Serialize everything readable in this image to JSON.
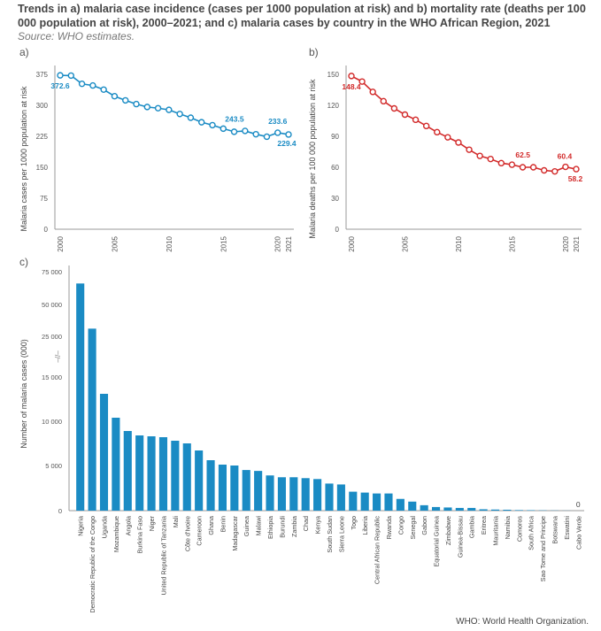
{
  "title": "Trends in a) malaria case incidence (cases per 1000 population at risk) and b) mortality rate (deaths per 100 000 population at risk), 2000–2021; and c) malaria cases by country in the WHO African Region, 2021",
  "source": "Source: WHO estimates.",
  "footer": "WHO: World Health Organization.",
  "chart_data": [
    {
      "type": "line",
      "panel_label": "a)",
      "ylabel": "Malaria cases per 1000 population at risk",
      "ylim": [
        0,
        375
      ],
      "yticks": [
        "0",
        "75",
        "150",
        "225",
        "300",
        "375"
      ],
      "xticks": [
        "2000",
        "2005",
        "2010",
        "2015",
        "2020",
        "2021"
      ],
      "color": "#1a8bc4",
      "x": [
        2000,
        2001,
        2002,
        2003,
        2004,
        2005,
        2006,
        2007,
        2008,
        2009,
        2010,
        2011,
        2012,
        2013,
        2014,
        2015,
        2016,
        2017,
        2018,
        2019,
        2020,
        2021
      ],
      "values": [
        372.6,
        372,
        352,
        348,
        338,
        322,
        312,
        303,
        296,
        293,
        289,
        279,
        270,
        259,
        252,
        243.5,
        236,
        238,
        230,
        224,
        233.6,
        229.4
      ],
      "annotations": [
        "372.6",
        "243.5",
        "233.6",
        "229.4"
      ]
    },
    {
      "type": "line",
      "panel_label": "b)",
      "ylabel": "Malaria deaths per 100 000 population at risk",
      "ylim": [
        0,
        150
      ],
      "yticks": [
        "0",
        "30",
        "60",
        "90",
        "120",
        "150"
      ],
      "xticks": [
        "2000",
        "2005",
        "2010",
        "2015",
        "2020",
        "2021"
      ],
      "color": "#d22a2a",
      "x": [
        2000,
        2001,
        2002,
        2003,
        2004,
        2005,
        2006,
        2007,
        2008,
        2009,
        2010,
        2011,
        2012,
        2013,
        2014,
        2015,
        2016,
        2017,
        2018,
        2019,
        2020,
        2021
      ],
      "values": [
        148.4,
        143,
        133,
        124,
        117,
        111,
        106,
        100,
        94,
        89,
        84,
        77,
        71,
        68,
        64,
        62.5,
        60,
        60,
        57,
        56,
        60.4,
        58.2
      ],
      "annotations": [
        "148.4",
        "62.5",
        "60.4",
        "58.2"
      ]
    },
    {
      "type": "bar",
      "panel_label": "c)",
      "ylabel": "Number of malaria cases (000)",
      "yticks": [
        "0",
        "5 000",
        "10 000",
        "15 000",
        "25 000",
        "50 000",
        "75 000"
      ],
      "axis_break": "–//–",
      "color": "#1a8bc4",
      "zero_label": "0",
      "categories": [
        "Nigeria",
        "Democratic Republic of the Congo",
        "Uganda",
        "Mozambique",
        "Angola",
        "Burkina Faso",
        "Niger",
        "United Republic of Tanzania",
        "Mali",
        "Côte d'Ivoire",
        "Cameroon",
        "Ghana",
        "Benin",
        "Madagascar",
        "Guinea",
        "Malawi",
        "Ethiopia",
        "Burundi",
        "Zambia",
        "Chad",
        "Kenya",
        "South Sudan",
        "Sierra Leone",
        "Togo",
        "Liberia",
        "Central African Republic",
        "Rwanda",
        "Congo",
        "Senegal",
        "Gabon",
        "Equatorial Guinea",
        "Zimbabwe",
        "Guinea-Bissau",
        "Gambia",
        "Eritrea",
        "Mauritania",
        "Namibia",
        "Comoros",
        "South Africa",
        "Sao Tome and Principe",
        "Botswana",
        "Eswatini",
        "Cabo Verde"
      ],
      "values": [
        66000,
        31000,
        13100,
        10400,
        8900,
        8400,
        8300,
        8200,
        7800,
        7500,
        6700,
        5600,
        5100,
        5000,
        4500,
        4400,
        3900,
        3700,
        3700,
        3600,
        3500,
        3000,
        2900,
        2100,
        2000,
        1900,
        1900,
        1300,
        1000,
        600,
        400,
        350,
        300,
        300,
        150,
        120,
        100,
        60,
        50,
        30,
        20,
        10,
        0
      ]
    }
  ]
}
